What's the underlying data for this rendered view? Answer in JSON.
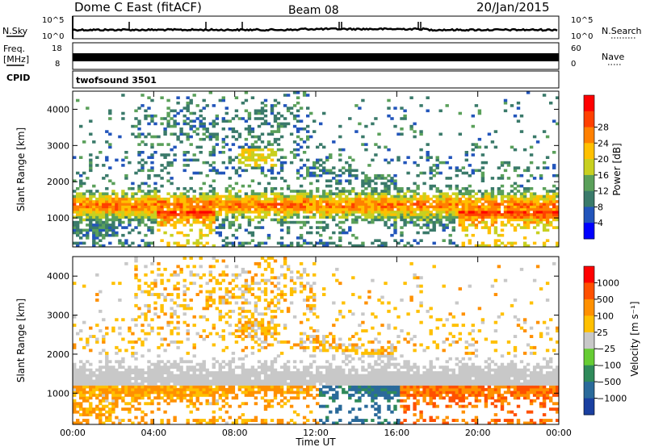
{
  "header": {
    "station": "Dome C East (fitACF)",
    "beam": "Beam 08",
    "date": "20/Jan/2015"
  },
  "strip_labels": {
    "nsky": "N.Sky",
    "nsearch": "N.Search",
    "freq_line1": "Freq.",
    "freq_line2": "[MHz]",
    "nave": "Nave",
    "cpid": "CPID",
    "nsky_ticks": [
      "10^5",
      "10^0"
    ],
    "nsearch_ticks": [
      "10^5",
      "10^0"
    ],
    "freq_ticks": [
      "18",
      "8"
    ],
    "nave_ticks": [
      "60",
      "0"
    ],
    "cpid_text": "twofsound 3501"
  },
  "chart_data": [
    {
      "type": "heatmap",
      "name": "power",
      "ylabel": "Slant Range [km]",
      "xlabel": "Time UT",
      "ylim": [
        200,
        4500
      ],
      "xlim": [
        0,
        24
      ],
      "x_ticks": [
        "00:00",
        "04:00",
        "08:00",
        "12:00",
        "16:00",
        "20:00",
        "00:00"
      ],
      "y_ticks": [
        1000,
        2000,
        3000,
        4000
      ],
      "colorbar": {
        "label": "Power [dB]",
        "ticks": [
          "4",
          "8",
          "12",
          "16",
          "20",
          "24",
          "28"
        ],
        "colors": [
          "#0000ff",
          "#2255bb",
          "#3a7a6a",
          "#5aa05a",
          "#c8d020",
          "#ffc000",
          "#ff8000",
          "#ff4000",
          "#ff0000"
        ]
      }
    },
    {
      "type": "heatmap",
      "name": "velocity",
      "ylabel": "Slant Range [km]",
      "xlabel": "Time UT",
      "ylim": [
        200,
        4500
      ],
      "xlim": [
        0,
        24
      ],
      "x_ticks": [
        "00:00",
        "04:00",
        "08:00",
        "12:00",
        "16:00",
        "20:00",
        "00:00"
      ],
      "y_ticks": [
        1000,
        2000,
        3000,
        4000
      ],
      "colorbar": {
        "label": "Velocity [m s⁻¹]",
        "ticks": [
          "1000",
          "500",
          "100",
          "25",
          "−25",
          "−100",
          "−500",
          "−1000"
        ],
        "colors": [
          "#1a3fa0",
          "#2a6a9a",
          "#2f8a5a",
          "#66cc33",
          "#c8c8c8",
          "#ffc000",
          "#ff9000",
          "#ff5000",
          "#ff0000"
        ]
      }
    }
  ]
}
